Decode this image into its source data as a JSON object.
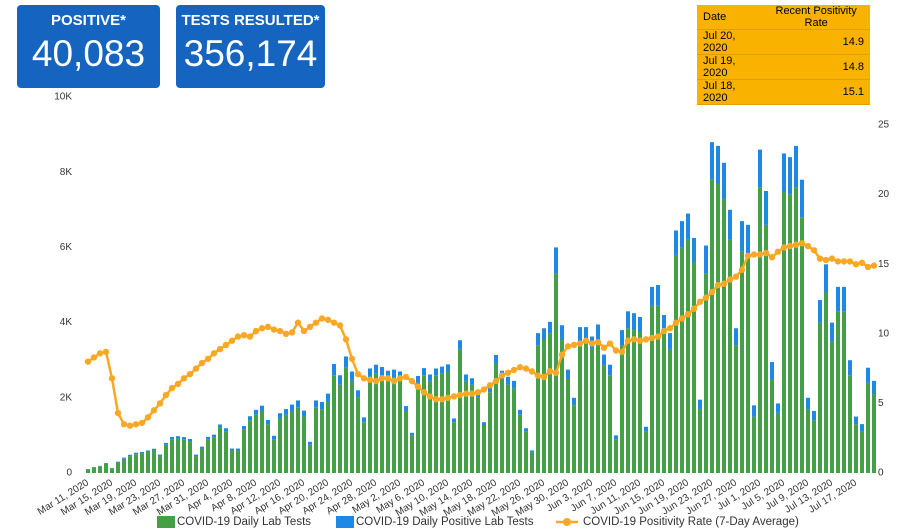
{
  "kpis": [
    {
      "label": "POSITIVE*",
      "value": "40,083"
    },
    {
      "label": "TESTS RESULTED*",
      "value": "356,174"
    }
  ],
  "table": {
    "header": [
      "Date",
      "Recent Positivity Rate"
    ],
    "rows": [
      [
        "Jul 20, 2020",
        14.9
      ],
      [
        "Jul 19, 2020",
        14.8
      ],
      [
        "Jul 18, 2020",
        15.1
      ]
    ]
  },
  "chart_data": {
    "type": "bar",
    "stacked": true,
    "categories": [
      "Mar 11, 2020",
      null,
      null,
      null,
      "Mar 15, 2020",
      null,
      null,
      null,
      "Mar 19, 2020",
      null,
      null,
      null,
      "Mar 23, 2020",
      null,
      null,
      null,
      "Mar 27, 2020",
      null,
      null,
      null,
      "Mar 31, 2020",
      null,
      null,
      null,
      "Apr 4, 2020",
      null,
      null,
      null,
      "Apr 8, 2020",
      null,
      null,
      null,
      "Apr 12, 2020",
      null,
      null,
      null,
      "Apr 16, 2020",
      null,
      null,
      null,
      "Apr 20, 2020",
      null,
      null,
      null,
      "Apr 24, 2020",
      null,
      null,
      null,
      "Apr 28, 2020",
      null,
      null,
      null,
      "May 2, 2020",
      null,
      null,
      null,
      "May 6, 2020",
      null,
      null,
      null,
      "May 10, 2020",
      null,
      null,
      null,
      "May 14, 2020",
      null,
      null,
      null,
      "May 18, 2020",
      null,
      null,
      null,
      "May 22, 2020",
      null,
      null,
      null,
      "May 26, 2020",
      null,
      null,
      null,
      "May 30, 2020",
      null,
      null,
      null,
      "Jun 3, 2020",
      null,
      null,
      null,
      "Jun 7, 2020",
      null,
      null,
      null,
      "Jun 11, 2020",
      null,
      null,
      null,
      "Jun 15, 2020",
      null,
      null,
      null,
      "Jun 19, 2020",
      null,
      null,
      null,
      "Jun 23, 2020",
      null,
      null,
      null,
      "Jun 27, 2020",
      null,
      null,
      null,
      "Jul 1, 2020",
      null,
      null,
      null,
      "Jul 5, 2020",
      null,
      null,
      null,
      "Jul 9, 2020",
      null,
      null,
      null,
      "Jul 13, 2020",
      null,
      null,
      null,
      "Jul 17, 2020",
      null,
      null,
      null
    ],
    "series": [
      {
        "name": "COVID-19 Daily Lab Tests",
        "color": "#43a047",
        "values": [
          100,
          150,
          180,
          250,
          120,
          280,
          380,
          450,
          500,
          520,
          560,
          600,
          450,
          750,
          900,
          920,
          900,
          850,
          450,
          650,
          900,
          950,
          1200,
          1100,
          600,
          600,
          1150,
          1400,
          1550,
          1650,
          1300,
          900,
          1450,
          1550,
          1650,
          1750,
          1500,
          750,
          1750,
          1700,
          1900,
          2600,
          2350,
          2800,
          2450,
          2000,
          1350,
          2550,
          2650,
          2600,
          2500,
          2550,
          2500,
          1650,
          1000,
          2400,
          2600,
          2450,
          2600,
          2650,
          2700,
          1350,
          3300,
          2450,
          2350,
          2000,
          1250,
          2150,
          2900,
          2500,
          2350,
          2250,
          1550,
          1100,
          550,
          3400,
          3550,
          3700,
          5300,
          3550,
          2500,
          1800,
          3500,
          3500,
          3300,
          3550,
          2850,
          2600,
          900,
          3400,
          3850,
          3800,
          3750,
          1100,
          4450,
          4450,
          3700,
          3300,
          5800,
          6000,
          6200,
          5600,
          1700,
          5300,
          7800,
          7700,
          7300,
          6200,
          3400,
          5900,
          5800,
          1500,
          7600,
          6600,
          2500,
          1600,
          7500,
          7400,
          7600,
          6800,
          1700,
          1400,
          4000,
          4800,
          3500,
          4300,
          4300,
          2600,
          1300,
          1100,
          2400,
          2100
        ]
      },
      {
        "name": "COVID-19 Daily Positive Lab Tests",
        "color": "#1e88e5",
        "values": [
          5,
          8,
          10,
          15,
          10,
          20,
          30,
          35,
          40,
          40,
          40,
          45,
          40,
          50,
          60,
          60,
          55,
          55,
          40,
          50,
          60,
          70,
          90,
          90,
          50,
          50,
          100,
          110,
          130,
          140,
          110,
          90,
          140,
          150,
          170,
          180,
          160,
          80,
          180,
          190,
          210,
          300,
          250,
          300,
          250,
          200,
          130,
          230,
          230,
          220,
          220,
          200,
          200,
          130,
          70,
          180,
          190,
          170,
          180,
          180,
          190,
          100,
          230,
          170,
          170,
          150,
          100,
          170,
          240,
          220,
          210,
          200,
          130,
          90,
          50,
          320,
          300,
          320,
          700,
          380,
          250,
          200,
          380,
          380,
          330,
          400,
          300,
          280,
          100,
          400,
          450,
          450,
          400,
          130,
          500,
          550,
          500,
          420,
          650,
          700,
          700,
          650,
          250,
          750,
          1000,
          1000,
          950,
          800,
          450,
          800,
          800,
          300,
          1000,
          900,
          450,
          250,
          1000,
          1000,
          1100,
          1000,
          300,
          250,
          600,
          750,
          500,
          650,
          650,
          400,
          200,
          200,
          400,
          350
        ]
      },
      {
        "name": "COVID-19 Positivity Rate (7-Day Average)",
        "color": "#f9a825",
        "type": "line",
        "axis": "y2",
        "values": [
          8.0,
          8.3,
          8.6,
          8.7,
          6.8,
          4.3,
          3.5,
          3.4,
          3.5,
          3.6,
          4.0,
          4.5,
          5.0,
          5.6,
          6.1,
          6.4,
          6.8,
          7.1,
          7.5,
          7.9,
          8.2,
          8.6,
          8.9,
          9.2,
          9.5,
          9.8,
          9.9,
          9.8,
          10.2,
          10.4,
          10.5,
          10.3,
          10.2,
          10.0,
          10.1,
          10.8,
          10.2,
          10.5,
          10.8,
          11.1,
          11.0,
          10.8,
          10.6,
          9.6,
          8.2,
          7.1,
          6.8,
          6.7,
          6.6,
          6.8,
          6.8,
          6.6,
          6.8,
          6.9,
          6.6,
          6.2,
          5.8,
          5.5,
          5.3,
          5.3,
          5.4,
          5.5,
          5.6,
          5.7,
          5.7,
          5.8,
          6.0,
          6.3,
          6.6,
          7.0,
          7.2,
          7.4,
          7.6,
          7.5,
          7.3,
          7.0,
          6.9,
          7.3,
          7.2,
          8.5,
          9.1,
          9.2,
          9.3,
          9.5,
          9.3,
          9.4,
          9.0,
          9.3,
          8.8,
          8.7,
          9.5,
          9.6,
          9.5,
          9.6,
          9.7,
          9.8,
          10.2,
          10.4,
          10.8,
          11.1,
          11.4,
          11.8,
          12.3,
          12.6,
          13.0,
          13.5,
          13.6,
          13.9,
          14.1,
          14.6,
          15.6,
          15.7,
          15.7,
          15.8,
          15.5,
          15.9,
          16.2,
          16.3,
          16.4,
          16.5,
          16.3,
          16.0,
          15.4,
          15.3,
          15.4,
          15.2,
          15.2,
          15.2,
          15.0,
          15.1,
          14.8,
          14.9
        ]
      }
    ],
    "ylim": [
      0,
      10000
    ],
    "yticks": [
      0,
      {
        "value": 2000,
        "label": "2K"
      },
      {
        "value": 4000,
        "label": "4K"
      },
      {
        "value": 6000,
        "label": "6K"
      },
      {
        "value": 8000,
        "label": "8K"
      },
      {
        "value": 10000,
        "label": "10K"
      }
    ],
    "y2lim": [
      0,
      25
    ],
    "y2ticks": [
      0,
      5,
      10,
      15,
      20,
      25
    ],
    "grid": false,
    "legend": "bottom"
  }
}
